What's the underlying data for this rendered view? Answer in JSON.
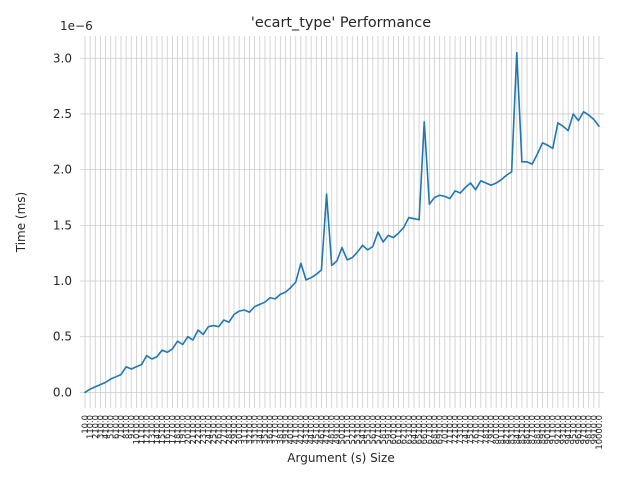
{
  "chart_data": {
    "type": "line",
    "title": "'ecart_type' Performance",
    "xlabel": "Argument (s) Size",
    "ylabel": "Time (ms)",
    "y_offset_text": "1e−6",
    "y_scale": 1e-06,
    "ylim": [
      -0.14,
      3.2
    ],
    "yticks": [
      0.0,
      0.5,
      1.0,
      1.5,
      2.0,
      2.5,
      3.0
    ],
    "ytick_labels": [
      "0.0",
      "0.5",
      "1.0",
      "1.5",
      "2.0",
      "2.5",
      "3.0"
    ],
    "grid": true,
    "line_color": "#1f77b4",
    "x_first_label": "10.0",
    "x_last_label": "10000.0",
    "series": [
      {
        "x": [
          10,
          110,
          210,
          310,
          410,
          510,
          610,
          710,
          810,
          910,
          1010,
          1110,
          1210,
          1310,
          1410,
          1510,
          1610,
          1710,
          1810,
          1910,
          2010,
          2110,
          2210,
          2310,
          2410,
          2510,
          2610,
          2710,
          2810,
          2910,
          3010,
          3110,
          3210,
          3310,
          3410,
          3510,
          3610,
          3710,
          3810,
          3910,
          4010,
          4110,
          4210,
          4310,
          4410,
          4510,
          4610,
          4710,
          4810,
          4910,
          5010,
          5110,
          5210,
          5310,
          5410,
          5510,
          5610,
          5710,
          5810,
          5910,
          6010,
          6110,
          6210,
          6310,
          6410,
          6510,
          6610,
          6710,
          6810,
          6910,
          7010,
          7110,
          7210,
          7310,
          7410,
          7510,
          7610,
          7710,
          7810,
          7910,
          8010,
          8110,
          8210,
          8310,
          8410,
          8510,
          8610,
          8710,
          8810,
          8910,
          9010,
          9110,
          9210,
          9310,
          9410,
          9510,
          9610,
          9710,
          9810,
          9910,
          10000
        ],
        "values": [
          0.0,
          0.03,
          0.05,
          0.07,
          0.09,
          0.12,
          0.14,
          0.16,
          0.23,
          0.21,
          0.23,
          0.25,
          0.33,
          0.3,
          0.32,
          0.38,
          0.36,
          0.39,
          0.46,
          0.43,
          0.5,
          0.47,
          0.56,
          0.52,
          0.59,
          0.6,
          0.59,
          0.65,
          0.63,
          0.7,
          0.73,
          0.74,
          0.72,
          0.77,
          0.79,
          0.81,
          0.85,
          0.84,
          0.88,
          0.9,
          0.94,
          0.99,
          1.16,
          1.01,
          1.03,
          1.06,
          1.1,
          1.78,
          1.14,
          1.18,
          1.3,
          1.19,
          1.21,
          1.26,
          1.32,
          1.28,
          1.31,
          1.44,
          1.35,
          1.41,
          1.39,
          1.43,
          1.48,
          1.57,
          1.56,
          1.55,
          2.43,
          1.69,
          1.75,
          1.77,
          1.76,
          1.74,
          1.81,
          1.79,
          1.84,
          1.88,
          1.82,
          1.9,
          1.88,
          1.86,
          1.88,
          1.91,
          1.95,
          1.98,
          3.05,
          2.07,
          2.07,
          2.05,
          2.14,
          2.24,
          2.22,
          2.19,
          2.42,
          2.39,
          2.35,
          2.5,
          2.44,
          2.52,
          2.49,
          2.45,
          2.39
        ]
      }
    ]
  }
}
